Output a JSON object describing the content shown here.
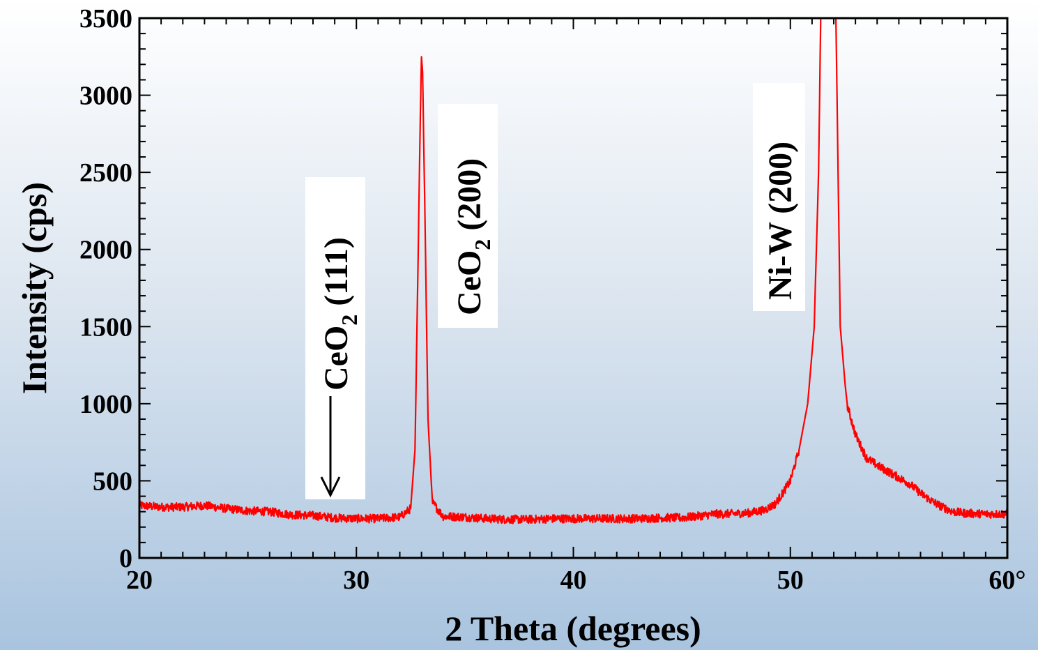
{
  "chart_data": {
    "type": "line",
    "xlabel": "2 Theta (degrees)",
    "ylabel": "Intensity (cps)",
    "xlim": [
      20,
      60
    ],
    "ylim": [
      0,
      3500
    ],
    "x_ticks": [
      {
        "value": 20,
        "label": "20"
      },
      {
        "value": 30,
        "label": "30"
      },
      {
        "value": 40,
        "label": "40"
      },
      {
        "value": 50,
        "label": "50"
      },
      {
        "value": 60,
        "label": "60°"
      }
    ],
    "y_ticks": [
      {
        "value": 0,
        "label": "0"
      },
      {
        "value": 500,
        "label": "500"
      },
      {
        "value": 1000,
        "label": "1000"
      },
      {
        "value": 1500,
        "label": "1500"
      },
      {
        "value": 2000,
        "label": "2000"
      },
      {
        "value": 2500,
        "label": "2500"
      },
      {
        "value": 3000,
        "label": "3000"
      },
      {
        "value": 3500,
        "label": "3500"
      }
    ],
    "grid": false,
    "series": [
      {
        "color": "#ff0000",
        "x": [
          20,
          21,
          22,
          23,
          24,
          25,
          26,
          27,
          28,
          29,
          30,
          31,
          32,
          32.5,
          32.7,
          32.85,
          32.95,
          33.0,
          33.05,
          33.15,
          33.3,
          33.5,
          34,
          35,
          36,
          37,
          38,
          39,
          40,
          41,
          42,
          43,
          44,
          45,
          46,
          46.5,
          47,
          48,
          48.8,
          49.3,
          49.6,
          50,
          50.4,
          50.8,
          51.1,
          51.3,
          51.4,
          51.5,
          51.8,
          52.0,
          52.1,
          52.3,
          52.6,
          53,
          53.5,
          54,
          54.5,
          55,
          55.5,
          56,
          56.5,
          57,
          57.5,
          58,
          59,
          60
        ],
        "y": [
          340,
          330,
          330,
          340,
          320,
          305,
          300,
          280,
          275,
          260,
          255,
          255,
          265,
          320,
          700,
          2000,
          2900,
          3250,
          3150,
          2300,
          900,
          360,
          270,
          265,
          255,
          250,
          250,
          255,
          255,
          255,
          255,
          255,
          260,
          260,
          275,
          285,
          285,
          290,
          310,
          350,
          410,
          500,
          700,
          1000,
          1500,
          2500,
          3500,
          3500,
          3500,
          3500,
          3500,
          1500,
          1000,
          800,
          650,
          600,
          560,
          520,
          480,
          420,
          370,
          330,
          300,
          290,
          285,
          285
        ]
      }
    ],
    "annotations": [
      {
        "base": "CeO",
        "sub": "2",
        "rest": " (111)",
        "x": 29.5,
        "arrow": true
      },
      {
        "base": "CeO",
        "sub": "2",
        "rest": " (200)",
        "x": 35.2,
        "arrow": false
      },
      {
        "base": "Ni-W (200)",
        "sub": "",
        "rest": "",
        "x": 50.1,
        "arrow": false
      }
    ]
  }
}
